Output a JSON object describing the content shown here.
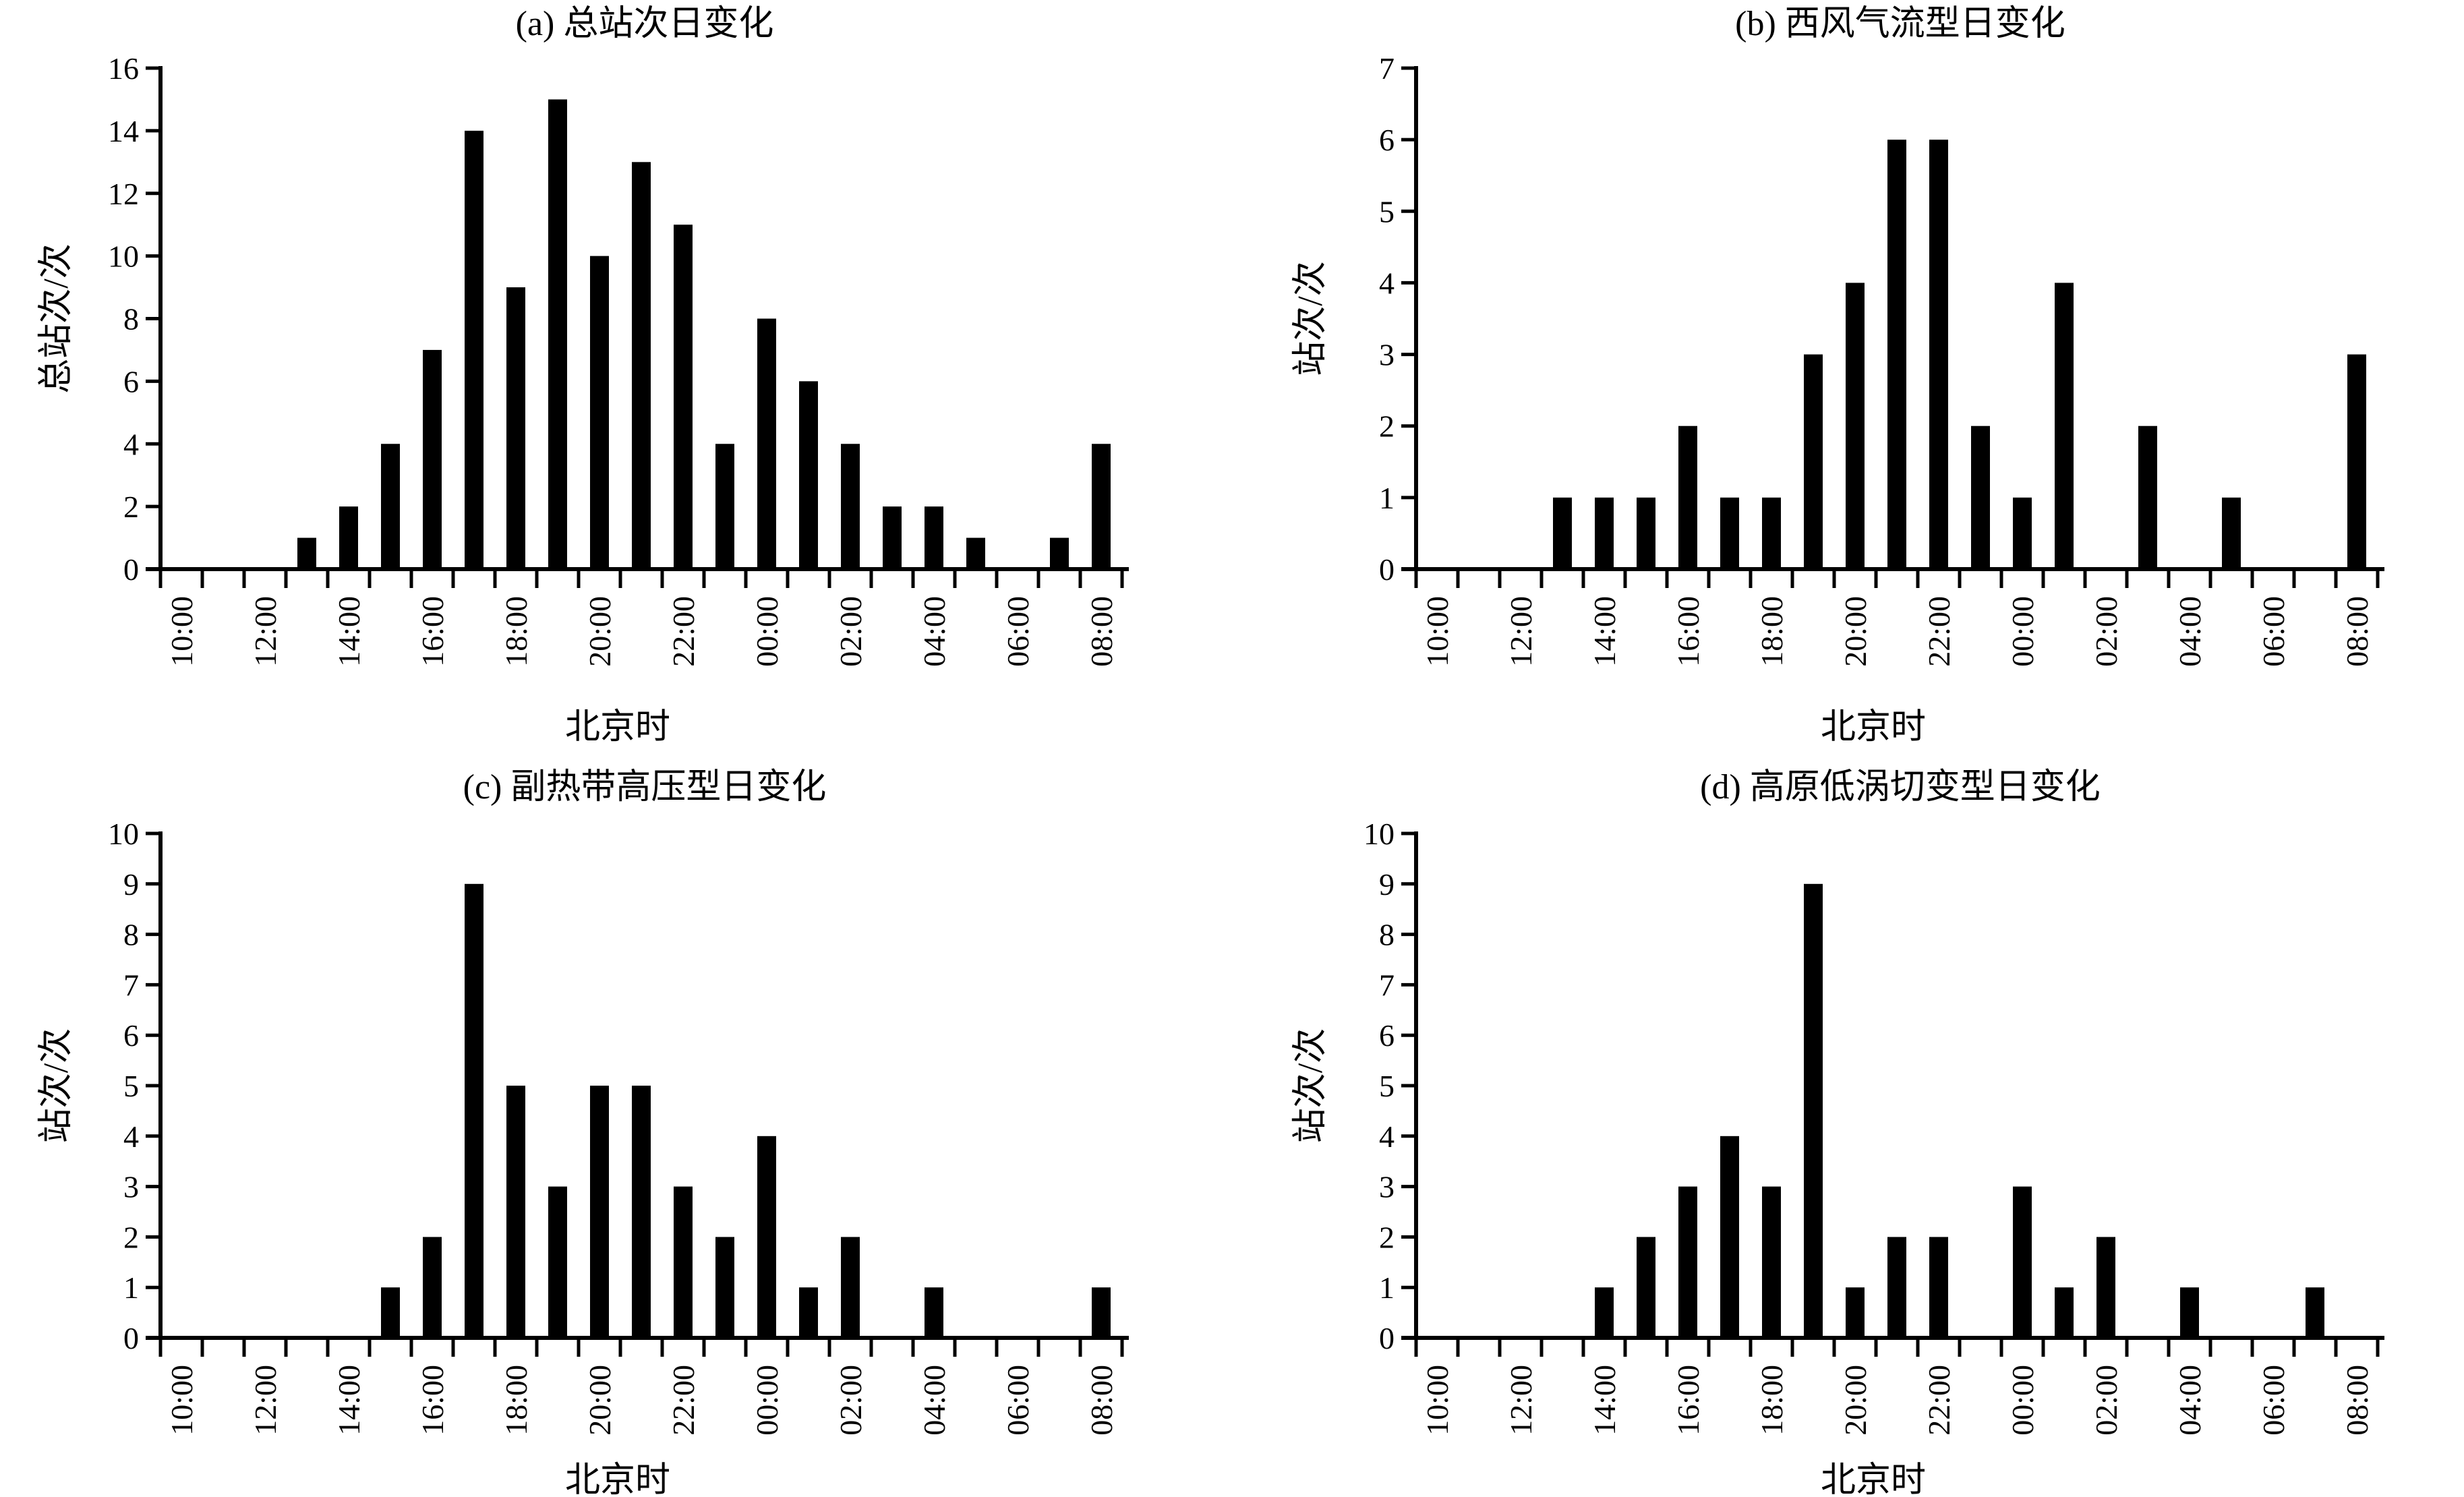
{
  "chart_data": [
    {
      "type": "bar",
      "title": "(a) 总站次日变化",
      "xlabel": "北京时",
      "ylabel": "总站次/次",
      "ylim": [
        0,
        16
      ],
      "yticks": [
        0,
        2,
        4,
        6,
        8,
        10,
        12,
        14,
        16
      ],
      "categories": [
        "10:00",
        "11:00",
        "12:00",
        "13:00",
        "14:00",
        "15:00",
        "16:00",
        "17:00",
        "18:00",
        "19:00",
        "20:00",
        "21:00",
        "22:00",
        "23:00",
        "00:00",
        "01:00",
        "02:00",
        "03:00",
        "04:00",
        "05:00",
        "06:00",
        "07:00",
        "08:00"
      ],
      "xtick_labels": [
        "10:00",
        "12:00",
        "14:00",
        "16:00",
        "18:00",
        "20:00",
        "22:00",
        "00:00",
        "02:00",
        "04:00",
        "06:00",
        "08:00"
      ],
      "values": [
        0,
        0,
        0,
        1,
        2,
        4,
        7,
        14,
        9,
        15,
        10,
        13,
        11,
        4,
        8,
        6,
        4,
        2,
        2,
        1,
        0,
        1,
        4
      ]
    },
    {
      "type": "bar",
      "title": "(b) 西风气流型日变化",
      "xlabel": "北京时",
      "ylabel": "站次/次",
      "ylim": [
        0,
        7
      ],
      "yticks": [
        0,
        1,
        2,
        3,
        4,
        5,
        6,
        7
      ],
      "categories": [
        "10:00",
        "11:00",
        "12:00",
        "13:00",
        "14:00",
        "15:00",
        "16:00",
        "17:00",
        "18:00",
        "19:00",
        "20:00",
        "21:00",
        "22:00",
        "23:00",
        "00:00",
        "01:00",
        "02:00",
        "03:00",
        "04:00",
        "05:00",
        "06:00",
        "07:00",
        "08:00"
      ],
      "xtick_labels": [
        "10:00",
        "12:00",
        "14:00",
        "16:00",
        "18:00",
        "20:00",
        "22:00",
        "00:00",
        "02:00",
        "04:00",
        "06:00",
        "08:00"
      ],
      "values": [
        0,
        0,
        0,
        1,
        1,
        1,
        2,
        1,
        1,
        3,
        4,
        6,
        6,
        2,
        1,
        4,
        0,
        2,
        0,
        1,
        0,
        0,
        3
      ]
    },
    {
      "type": "bar",
      "title": "(c) 副热带高压型日变化",
      "xlabel": "北京时",
      "ylabel": "站次/次",
      "ylim": [
        0,
        10
      ],
      "yticks": [
        0,
        1,
        2,
        3,
        4,
        5,
        6,
        7,
        8,
        9,
        10
      ],
      "categories": [
        "10:00",
        "11:00",
        "12:00",
        "13:00",
        "14:00",
        "15:00",
        "16:00",
        "17:00",
        "18:00",
        "19:00",
        "20:00",
        "21:00",
        "22:00",
        "23:00",
        "00:00",
        "01:00",
        "02:00",
        "03:00",
        "04:00",
        "05:00",
        "06:00",
        "07:00",
        "08:00"
      ],
      "xtick_labels": [
        "10:00",
        "12:00",
        "14:00",
        "16:00",
        "18:00",
        "20:00",
        "22:00",
        "00:00",
        "02:00",
        "04:00",
        "06:00",
        "08:00"
      ],
      "values": [
        0,
        0,
        0,
        0,
        0,
        1,
        2,
        9,
        5,
        3,
        5,
        5,
        3,
        2,
        4,
        1,
        2,
        0,
        1,
        0,
        0,
        0,
        1
      ]
    },
    {
      "type": "bar",
      "title": "(d) 高原低涡切变型日变化",
      "xlabel": "北京时",
      "ylabel": "站次/次",
      "ylim": [
        0,
        10
      ],
      "yticks": [
        0,
        1,
        2,
        3,
        4,
        5,
        6,
        7,
        8,
        9,
        10
      ],
      "categories": [
        "10:00",
        "11:00",
        "12:00",
        "13:00",
        "14:00",
        "15:00",
        "16:00",
        "17:00",
        "18:00",
        "19:00",
        "20:00",
        "21:00",
        "22:00",
        "23:00",
        "00:00",
        "01:00",
        "02:00",
        "03:00",
        "04:00",
        "05:00",
        "06:00",
        "07:00",
        "08:00"
      ],
      "xtick_labels": [
        "10:00",
        "12:00",
        "14:00",
        "16:00",
        "18:00",
        "20:00",
        "22:00",
        "00:00",
        "02:00",
        "04:00",
        "06:00",
        "08:00"
      ],
      "values": [
        0,
        0,
        0,
        0,
        1,
        2,
        3,
        4,
        3,
        9,
        1,
        2,
        2,
        0,
        3,
        1,
        2,
        0,
        1,
        0,
        0,
        1,
        0
      ]
    }
  ]
}
